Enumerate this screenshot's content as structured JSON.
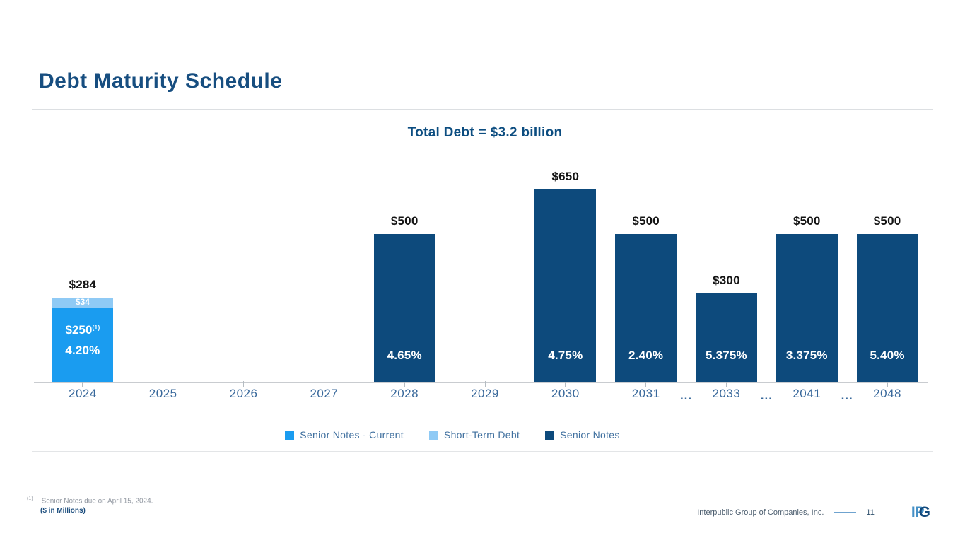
{
  "slide": {
    "title": "Debt Maturity Schedule",
    "footnote_marker": "(1)",
    "footnote_text": "Senior Notes due on April 15, 2024.",
    "units_note": "($ in Millions)",
    "footer_company": "Interpublic Group of Companies, Inc.",
    "page_number": "11",
    "logo": {
      "ip": "IP",
      "g": "G"
    }
  },
  "colors": {
    "senior_notes_current": "#1a9cf0",
    "short_term_debt": "#8fcaf5",
    "senior_notes": "#0d4a7c",
    "title_blue": "#174e80",
    "axis_label_blue": "#38689b"
  },
  "chart_data": {
    "type": "bar",
    "stacked": true,
    "title": "Total Debt = $3.2 billion",
    "xlabel": "",
    "ylabel": "",
    "units": "$ in Millions",
    "ylim": [
      0,
      765
    ],
    "grid": false,
    "legend_position": "bottom",
    "ellipsis": "...",
    "bars": [
      {
        "category": "2024",
        "total": 284,
        "total_label": "$284",
        "rate_label": "4.20%",
        "gap_after": false,
        "segments": [
          {
            "series": "Senior Notes - Current",
            "value": 250,
            "label": "$250",
            "label_superscript": "(1)",
            "color": "#1a9cf0"
          },
          {
            "series": "Short-Term Debt",
            "value": 34,
            "label": "$34",
            "color": "#8fcaf5"
          }
        ]
      },
      {
        "category": "2025",
        "segments": []
      },
      {
        "category": "2026",
        "segments": []
      },
      {
        "category": "2027",
        "segments": []
      },
      {
        "category": "2028",
        "total": 500,
        "total_label": "$500",
        "rate_label": "4.65%",
        "gap_after": false,
        "segments": [
          {
            "series": "Senior Notes",
            "value": 500,
            "color": "#0d4a7c"
          }
        ]
      },
      {
        "category": "2029",
        "segments": []
      },
      {
        "category": "2030",
        "total": 650,
        "total_label": "$650",
        "rate_label": "4.75%",
        "gap_after": false,
        "segments": [
          {
            "series": "Senior Notes",
            "value": 650,
            "color": "#0d4a7c"
          }
        ]
      },
      {
        "category": "2031",
        "total": 500,
        "total_label": "$500",
        "rate_label": "2.40%",
        "gap_after": true,
        "segments": [
          {
            "series": "Senior Notes",
            "value": 500,
            "color": "#0d4a7c"
          }
        ]
      },
      {
        "category": "2033",
        "total": 300,
        "total_label": "$300",
        "rate_label": "5.375%",
        "gap_after": true,
        "segments": [
          {
            "series": "Senior Notes",
            "value": 300,
            "color": "#0d4a7c"
          }
        ]
      },
      {
        "category": "2041",
        "total": 500,
        "total_label": "$500",
        "rate_label": "3.375%",
        "gap_after": true,
        "segments": [
          {
            "series": "Senior Notes",
            "value": 500,
            "color": "#0d4a7c"
          }
        ]
      },
      {
        "category": "2048",
        "total": 500,
        "total_label": "$500",
        "rate_label": "5.40%",
        "gap_after": false,
        "segments": [
          {
            "series": "Senior Notes",
            "value": 500,
            "color": "#0d4a7c"
          }
        ]
      }
    ]
  },
  "legend": {
    "items": [
      {
        "label": "Senior Notes - Current",
        "color": "#1a9cf0"
      },
      {
        "label": "Short-Term Debt",
        "color": "#8fcaf5"
      },
      {
        "label": "Senior Notes",
        "color": "#0d4a7c"
      }
    ]
  }
}
